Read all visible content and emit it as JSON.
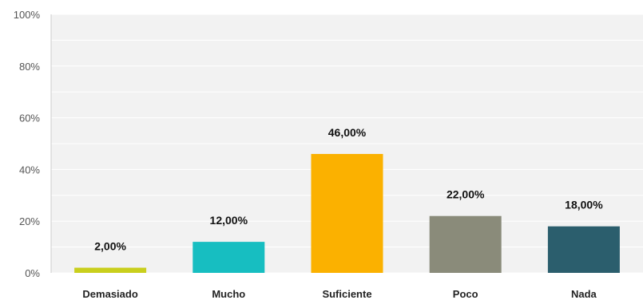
{
  "chart_data": {
    "type": "bar",
    "categories": [
      "Demasiado",
      "Mucho",
      "Suficiente",
      "Poco",
      "Nada"
    ],
    "values": [
      2,
      12,
      46,
      22,
      18
    ],
    "data_labels": [
      "2,00%",
      "12,00%",
      "46,00%",
      "22,00%",
      "18,00%"
    ],
    "colors": [
      "#c9cf1d",
      "#17bec1",
      "#fbb100",
      "#8a8b7a",
      "#2b5e6d"
    ],
    "ylim": [
      0,
      100
    ],
    "yticks": [
      0,
      20,
      40,
      60,
      80,
      100
    ],
    "ytick_labels": [
      "0%",
      "20%",
      "40%",
      "60%",
      "80%",
      "100%"
    ],
    "title": "",
    "xlabel": "",
    "ylabel": "",
    "grid": true,
    "plot_background": "#f2f2f2",
    "gridline_color": "#ffffff"
  }
}
